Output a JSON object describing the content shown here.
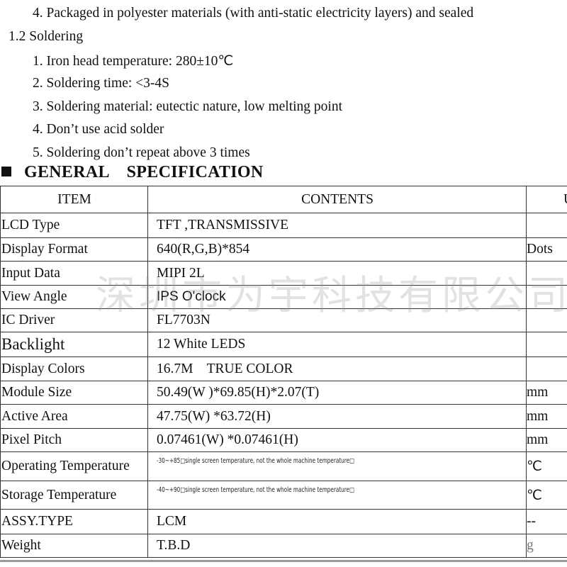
{
  "packaging_item": "4.  Packaged in polyester materials (with anti-static electricity layers) and sealed",
  "soldering": {
    "heading": "1.2 Soldering",
    "items": [
      "1.  Iron head temperature: 280±10℃",
      "2.  Soldering time: <3-4S",
      "3.  Soldering material: eutectic nature, low melting point",
      "4.  Don’t use acid solder",
      "5.  Soldering don’t repeat above 3 times"
    ]
  },
  "spec": {
    "heading": "GENERAL    SPECIFICATION",
    "headers": [
      "ITEM",
      "CONTENTS",
      "U"
    ],
    "rows": [
      {
        "item": "LCD Type",
        "contents": "TFT ,TRANSMISSIVE",
        "unit": ""
      },
      {
        "item": "Display Format",
        "contents": "640(R,G,B)*854",
        "unit": "Dots"
      },
      {
        "item": "Input Data",
        "contents": "MIPI 2L",
        "unit": ""
      },
      {
        "item": "View Angle",
        "contents": "IPS O'clock",
        "unit": ""
      },
      {
        "item": "IC Driver",
        "contents": "FL7703N",
        "unit": ""
      },
      {
        "item": "Backlight",
        "contents": "12 White LEDS",
        "unit": ""
      },
      {
        "item": "Display Colors",
        "contents": "16.7M    TRUE COLOR",
        "unit": ""
      },
      {
        "item": "Module Size",
        "contents": "50.49(W )*69.85(H)*2.07(T)",
        "unit": "mm"
      },
      {
        "item": "Active Area",
        "contents": "47.75(W) *63.72(H)",
        "unit": "mm"
      },
      {
        "item": "Pixel Pitch",
        "contents": "0.07461(W) *0.07461(H)",
        "unit": "mm"
      },
      {
        "item": "Operating Temperature",
        "contents": "-30~+85□single screen temperature, not the whole machine temperature□",
        "unit": "℃"
      },
      {
        "item": "Storage Temperature",
        "contents": "-40~+90□single screen temperature, not the whole machine temperature□",
        "unit": "℃"
      },
      {
        "item": "ASSY.TYPE",
        "contents": "LCM",
        "unit": "--"
      },
      {
        "item": "Weight",
        "contents": "T.B.D",
        "unit": "g"
      }
    ]
  },
  "watermark": "深圳市为宇科技有限公司"
}
